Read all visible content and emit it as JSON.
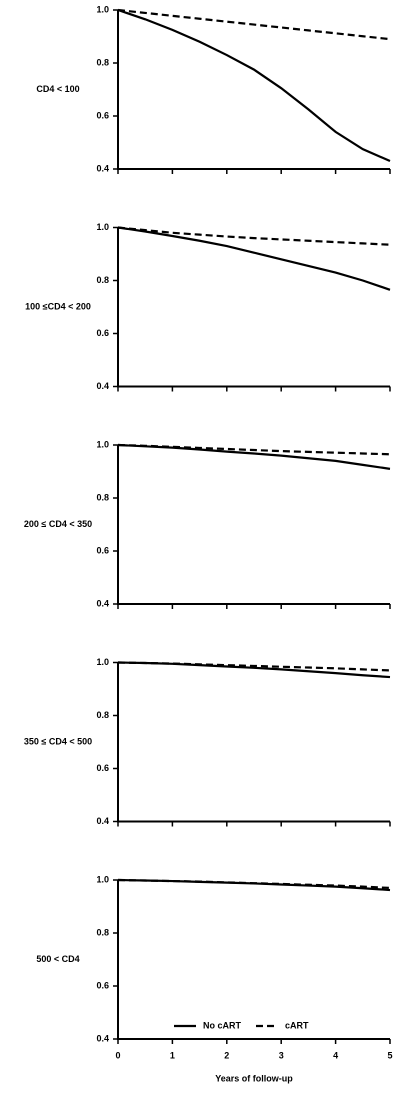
{
  "chart_data": [
    {
      "type": "line",
      "ylabel": "CD4 < 100",
      "x": [
        0,
        0.5,
        1,
        1.5,
        2,
        2.5,
        3,
        3.5,
        4,
        4.5,
        5
      ],
      "series": [
        {
          "name": "No cART",
          "color": "#000000",
          "style": "solid",
          "values": [
            1.0,
            0.965,
            0.925,
            0.88,
            0.83,
            0.775,
            0.705,
            0.625,
            0.54,
            0.475,
            0.43
          ]
        },
        {
          "name": "cART",
          "color": "#000000",
          "style": "dashed",
          "values": [
            1.0,
            0.989,
            0.978,
            0.967,
            0.956,
            0.945,
            0.934,
            0.923,
            0.912,
            0.901,
            0.89
          ]
        }
      ],
      "xlim": [
        0,
        5
      ],
      "xticks": [
        0,
        1,
        2,
        3,
        4,
        5
      ],
      "ylim": [
        0.4,
        1.0
      ],
      "yticks": [
        {
          "value": 1.0,
          "label": "1.0"
        },
        {
          "value": 0.8,
          "label": "0.8"
        },
        {
          "value": 0.6,
          "label": "0.6"
        },
        {
          "value": 0.4,
          "label": "0.4"
        }
      ]
    },
    {
      "type": "line",
      "ylabel": "100  ≤CD4 < 200",
      "x": [
        0,
        0.5,
        1,
        1.5,
        2,
        2.5,
        3,
        3.5,
        4,
        4.5,
        5
      ],
      "series": [
        {
          "name": "No cART",
          "color": "#000000",
          "style": "solid",
          "values": [
            1.0,
            0.985,
            0.968,
            0.95,
            0.93,
            0.905,
            0.88,
            0.855,
            0.83,
            0.8,
            0.765
          ]
        },
        {
          "name": "cART",
          "color": "#000000",
          "style": "dashed",
          "values": [
            1.0,
            0.99,
            0.98,
            0.973,
            0.966,
            0.96,
            0.955,
            0.95,
            0.945,
            0.94,
            0.935
          ]
        }
      ],
      "xlim": [
        0,
        5
      ],
      "xticks": [
        0,
        1,
        2,
        3,
        4,
        5
      ],
      "ylim": [
        0.4,
        1.0
      ],
      "yticks": [
        {
          "value": 1.0,
          "label": "1.0"
        },
        {
          "value": 0.8,
          "label": "0.8"
        },
        {
          "value": 0.6,
          "label": "0.6"
        },
        {
          "value": 0.4,
          "label": "0.4"
        }
      ]
    },
    {
      "type": "line",
      "ylabel": "200  ≤ CD4 < 350",
      "x": [
        0,
        0.5,
        1,
        1.5,
        2,
        2.5,
        3,
        3.5,
        4,
        4.5,
        5
      ],
      "series": [
        {
          "name": "No cART",
          "color": "#000000",
          "style": "solid",
          "values": [
            1.0,
            0.995,
            0.99,
            0.983,
            0.975,
            0.968,
            0.96,
            0.95,
            0.94,
            0.925,
            0.91
          ]
        },
        {
          "name": "cART",
          "color": "#000000",
          "style": "dashed",
          "values": [
            1.0,
            0.997,
            0.993,
            0.989,
            0.985,
            0.981,
            0.977,
            0.974,
            0.971,
            0.968,
            0.965
          ]
        }
      ],
      "xlim": [
        0,
        5
      ],
      "xticks": [
        0,
        1,
        2,
        3,
        4,
        5
      ],
      "ylim": [
        0.4,
        1.0
      ],
      "yticks": [
        {
          "value": 1.0,
          "label": "1.0"
        },
        {
          "value": 0.8,
          "label": "0.8"
        },
        {
          "value": 0.6,
          "label": "0.6"
        },
        {
          "value": 0.4,
          "label": "0.4"
        }
      ]
    },
    {
      "type": "line",
      "ylabel": "350  ≤ CD4 < 500",
      "x": [
        0,
        0.5,
        1,
        1.5,
        2,
        2.5,
        3,
        3.5,
        4,
        4.5,
        5
      ],
      "series": [
        {
          "name": "No cART",
          "color": "#000000",
          "style": "solid",
          "values": [
            1.0,
            0.998,
            0.995,
            0.99,
            0.985,
            0.98,
            0.974,
            0.967,
            0.96,
            0.952,
            0.945
          ]
        },
        {
          "name": "cART",
          "color": "#000000",
          "style": "dashed",
          "values": [
            1.0,
            0.998,
            0.996,
            0.993,
            0.99,
            0.987,
            0.984,
            0.981,
            0.978,
            0.974,
            0.97
          ]
        }
      ],
      "xlim": [
        0,
        5
      ],
      "xticks": [
        0,
        1,
        2,
        3,
        4,
        5
      ],
      "ylim": [
        0.4,
        1.0
      ],
      "yticks": [
        {
          "value": 1.0,
          "label": "1.0"
        },
        {
          "value": 0.8,
          "label": "0.8"
        },
        {
          "value": 0.6,
          "label": "0.6"
        },
        {
          "value": 0.4,
          "label": "0.4"
        }
      ]
    },
    {
      "type": "line",
      "ylabel": "500 < CD4",
      "xlabel": "Years of follow-up",
      "legend": "lower center",
      "x": [
        0,
        0.5,
        1,
        1.5,
        2,
        2.5,
        3,
        3.5,
        4,
        4.5,
        5
      ],
      "series": [
        {
          "name": "No cART",
          "color": "#000000",
          "style": "solid",
          "values": [
            1.0,
            0.998,
            0.996,
            0.993,
            0.99,
            0.987,
            0.983,
            0.979,
            0.975,
            0.969,
            0.962
          ]
        },
        {
          "name": "cART",
          "color": "#000000",
          "style": "dashed",
          "values": [
            1.0,
            0.998,
            0.996,
            0.994,
            0.991,
            0.988,
            0.985,
            0.982,
            0.979,
            0.975,
            0.97
          ]
        }
      ],
      "xlim": [
        0,
        5
      ],
      "xticks": [
        0,
        1,
        2,
        3,
        4,
        5
      ],
      "ylim": [
        0.4,
        1.0
      ],
      "yticks": [
        {
          "value": 1.0,
          "label": "1.0"
        },
        {
          "value": 0.8,
          "label": "0.8"
        },
        {
          "value": 0.6,
          "label": "0.6"
        },
        {
          "value": 0.4,
          "label": "0.4"
        }
      ]
    }
  ]
}
